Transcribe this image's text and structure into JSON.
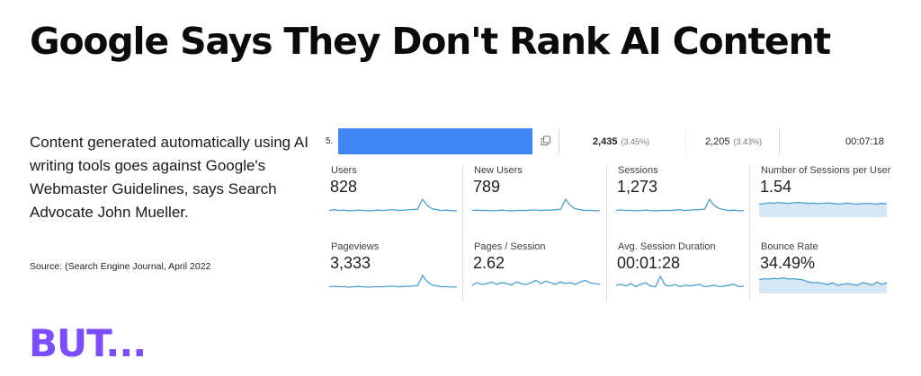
{
  "slide": {
    "title": "Google Says They Don't Rank AI Content",
    "description": "Content generated automatically using AI writing tools goes against Google's Webmaster Guidelines, says Search Advocate John Mueller.",
    "source": "Source: (Search Engine Journal, April 2022",
    "footer": "BUT...",
    "accent_color": "#7b4dff"
  },
  "analytics": {
    "row": {
      "rank": "5.",
      "bar_color": "#4285f4",
      "users": "2,435",
      "users_pct": "(3.45%)",
      "new_users": "2,205",
      "new_users_pct": "(3.43%)",
      "duration": "00:07:18"
    },
    "metrics": [
      {
        "label": "Users",
        "value": "828",
        "spark": [
          0.3,
          0.35,
          0.3,
          0.32,
          0.28,
          0.3,
          0.33,
          0.3,
          0.28,
          0.3,
          0.32,
          0.3,
          0.33,
          0.35,
          0.3,
          0.32,
          0.34,
          0.36,
          0.38,
          1.0,
          0.6,
          0.4,
          0.35,
          0.3,
          0.32,
          0.28,
          0.3
        ]
      },
      {
        "label": "New Users",
        "value": "789",
        "spark": [
          0.3,
          0.33,
          0.3,
          0.31,
          0.28,
          0.3,
          0.32,
          0.3,
          0.28,
          0.3,
          0.31,
          0.3,
          0.32,
          0.34,
          0.3,
          0.32,
          0.33,
          0.35,
          0.37,
          1.0,
          0.6,
          0.4,
          0.35,
          0.3,
          0.31,
          0.28,
          0.3
        ]
      },
      {
        "label": "Sessions",
        "value": "1,273",
        "spark": [
          0.3,
          0.34,
          0.3,
          0.31,
          0.28,
          0.3,
          0.33,
          0.3,
          0.28,
          0.3,
          0.31,
          0.3,
          0.32,
          0.35,
          0.3,
          0.32,
          0.34,
          0.36,
          0.38,
          1.0,
          0.6,
          0.42,
          0.35,
          0.3,
          0.32,
          0.28,
          0.3
        ]
      },
      {
        "label": "Number of Sessions per User",
        "value": "1.54",
        "spark": [
          0.7,
          0.72,
          0.78,
          0.75,
          0.8,
          0.76,
          0.74,
          0.78,
          0.8,
          0.77,
          0.74,
          0.76,
          0.72,
          0.75,
          0.78,
          0.74,
          0.7,
          0.72,
          0.76,
          0.72,
          0.7,
          0.73,
          0.75,
          0.72,
          0.7,
          0.74,
          0.72
        ],
        "fill": true
      },
      {
        "label": "Pageviews",
        "value": "3,333",
        "spark": [
          0.3,
          0.33,
          0.3,
          0.31,
          0.28,
          0.3,
          0.32,
          0.3,
          0.28,
          0.3,
          0.31,
          0.3,
          0.32,
          0.34,
          0.3,
          0.32,
          0.33,
          0.35,
          0.37,
          1.0,
          0.6,
          0.4,
          0.35,
          0.3,
          0.31,
          0.28,
          0.3
        ]
      },
      {
        "label": "Pages / Session",
        "value": "2.62",
        "spark": [
          0.4,
          0.55,
          0.45,
          0.5,
          0.6,
          0.45,
          0.55,
          0.5,
          0.42,
          0.6,
          0.5,
          0.45,
          0.55,
          0.7,
          0.5,
          0.65,
          0.55,
          0.45,
          0.6,
          0.5,
          0.55,
          0.45,
          0.6,
          0.7,
          0.55,
          0.5,
          0.45
        ]
      },
      {
        "label": "Avg. Session Duration",
        "value": "00:01:28",
        "spark": [
          0.4,
          0.45,
          0.35,
          0.5,
          0.3,
          0.45,
          0.55,
          0.35,
          0.3,
          0.95,
          0.4,
          0.35,
          0.45,
          0.3,
          0.4,
          0.35,
          0.4,
          0.45,
          0.3,
          0.35,
          0.4,
          0.3,
          0.35,
          0.4,
          0.45,
          0.3,
          0.35
        ]
      },
      {
        "label": "Bounce Rate",
        "value": "34.49%",
        "spark": [
          0.75,
          0.8,
          0.78,
          0.82,
          0.8,
          0.85,
          0.78,
          0.8,
          0.76,
          0.72,
          0.6,
          0.55,
          0.58,
          0.5,
          0.45,
          0.55,
          0.4,
          0.45,
          0.5,
          0.45,
          0.4,
          0.55,
          0.5,
          0.4,
          0.6,
          0.45,
          0.55
        ],
        "fill": true
      }
    ],
    "spark_color": "#4a9fd0",
    "spark_fill": "#d6e8f5"
  }
}
